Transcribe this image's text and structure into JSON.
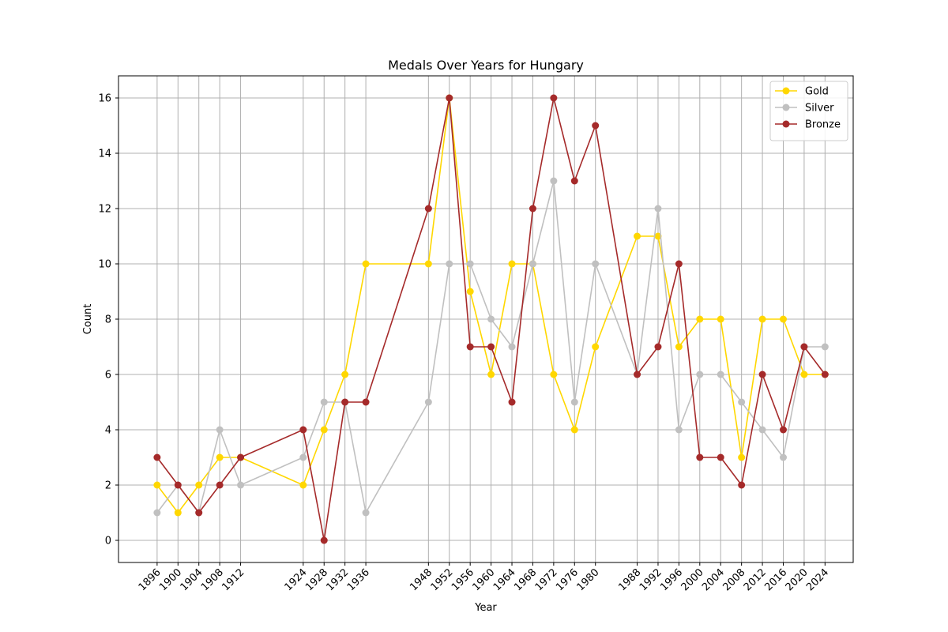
{
  "chart_data": {
    "type": "line",
    "title": "Medals Over Years for Hungary",
    "xlabel": "Year",
    "ylabel": "Count",
    "x": [
      1896,
      1900,
      1904,
      1908,
      1912,
      1924,
      1928,
      1932,
      1936,
      1948,
      1952,
      1956,
      1960,
      1964,
      1968,
      1972,
      1976,
      1980,
      1988,
      1992,
      1996,
      2000,
      2004,
      2008,
      2012,
      2016,
      2020,
      2024
    ],
    "xlim": [
      1888.6,
      2029.4
    ],
    "ylim": [
      -0.8,
      16.8
    ],
    "yticks": [
      0,
      2,
      4,
      6,
      8,
      10,
      12,
      14,
      16
    ],
    "grid": true,
    "legend_position": "top-right",
    "series": [
      {
        "name": "Gold",
        "color": "#ffd700",
        "values": [
          2,
          1,
          2,
          3,
          3,
          2,
          4,
          6,
          10,
          10,
          16,
          9,
          6,
          10,
          10,
          6,
          4,
          7,
          11,
          11,
          7,
          8,
          8,
          3,
          8,
          8,
          6,
          6
        ]
      },
      {
        "name": "Silver",
        "color": "#c0c0c0",
        "values": [
          1,
          2,
          1,
          4,
          2,
          3,
          5,
          5,
          1,
          5,
          10,
          10,
          8,
          7,
          10,
          13,
          5,
          10,
          6,
          12,
          4,
          6,
          6,
          5,
          4,
          3,
          7,
          7
        ]
      },
      {
        "name": "Bronze",
        "color": "#a52a2a",
        "values": [
          3,
          2,
          1,
          2,
          3,
          4,
          0,
          5,
          5,
          12,
          16,
          7,
          7,
          5,
          12,
          16,
          13,
          15,
          6,
          7,
          10,
          3,
          3,
          2,
          6,
          4,
          7,
          6
        ]
      }
    ]
  }
}
